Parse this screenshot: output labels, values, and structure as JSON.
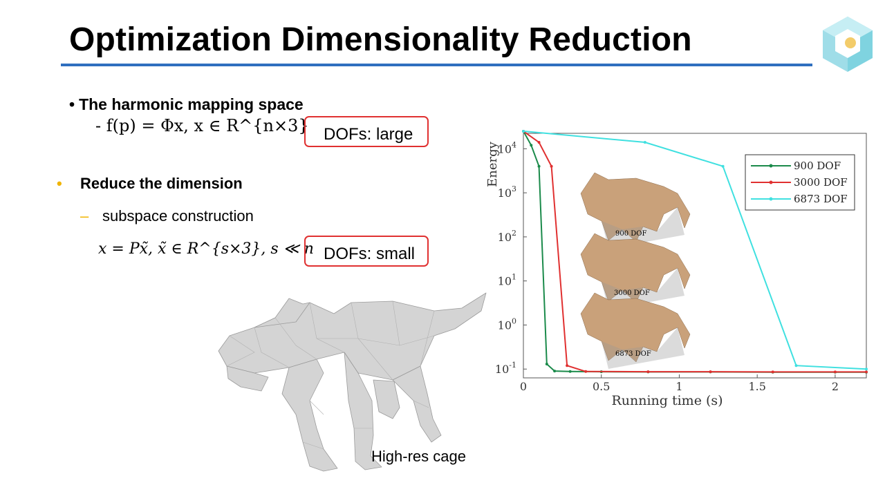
{
  "slide": {
    "title": "Optimization Dimensionality Reduction",
    "accent_color": "#2f6fbf",
    "bullet1": "The harmonic mapping space",
    "formula1": "- f(p) = Φx,   x ∈ R^{n×3}",
    "box1": "DOFs: large",
    "bullet2": "Reduce the dimension",
    "sub_bullet": "subspace construction",
    "formula2": "x = Px̃,   x̃ ∈ R^{s×3},  s ≪ n",
    "box2": "DOFs: small",
    "box_color": "#e03030",
    "bullet_yellow": "#f0b400",
    "cage_label": "High-res cage"
  },
  "chart_data": {
    "type": "line",
    "xlabel": "Running time (s)",
    "ylabel": "Energy",
    "xlim": [
      0,
      2.2
    ],
    "ylim_log10": [
      -1.2,
      4.35
    ],
    "yscale": "log",
    "xticks": [
      "0",
      "0.5",
      "1",
      "1.5",
      "2"
    ],
    "ytick_labels": [
      "10^-1",
      "10^0",
      "10^1",
      "10^2",
      "10^3",
      "10^4"
    ],
    "legend_position": "top-right",
    "series": [
      {
        "name": "900 DOF",
        "color": "#1a8a4a",
        "x": [
          0,
          0.05,
          0.1,
          0.15,
          0.2,
          0.3,
          0.5,
          0.8,
          1.2,
          1.6,
          2.0,
          2.2
        ],
        "y": [
          25000,
          12000,
          4000,
          0.13,
          0.09,
          0.088,
          0.087,
          0.086,
          0.086,
          0.085,
          0.085,
          0.085
        ]
      },
      {
        "name": "3000 DOF",
        "color": "#e03030",
        "x": [
          0,
          0.1,
          0.18,
          0.28,
          0.4,
          0.8,
          1.2,
          1.6,
          2.0,
          2.2
        ],
        "y": [
          25000,
          14000,
          4000,
          0.12,
          0.088,
          0.087,
          0.087,
          0.086,
          0.086,
          0.086
        ]
      },
      {
        "name": "6873 DOF",
        "color": "#3fe0e0",
        "x": [
          0,
          0.78,
          1.28,
          1.75,
          2.2
        ],
        "y": [
          25000,
          14000,
          4000,
          0.12,
          0.1
        ]
      }
    ],
    "annotations": [
      "900 DOF",
      "3000 DOF",
      "6873 DOF"
    ]
  }
}
